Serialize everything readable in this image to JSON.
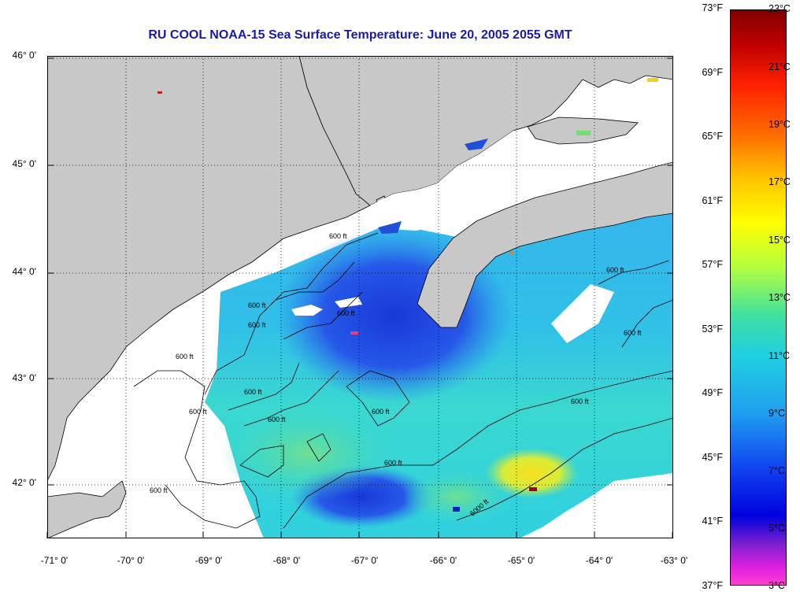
{
  "title": "RU COOL  NOAA-15  Sea Surface Temperature:  June 20, 2005 2055 GMT",
  "map": {
    "lat_ticks": [
      "46° 0'",
      "45° 0'",
      "44° 0'",
      "43° 0'",
      "42° 0'"
    ],
    "lon_ticks": [
      "-71° 0'",
      "-70° 0'",
      "-69° 0'",
      "-68° 0'",
      "-67° 0'",
      "-66° 0'",
      "-65° 0'",
      "-64° 0'",
      "-63° 0'"
    ],
    "lat_range": [
      41.5,
      46.1
    ],
    "lon_range": [
      -71.0,
      -63.0
    ],
    "contour_labels": [
      "600 ft",
      "600 ft",
      "600 ft",
      "600 ft",
      "600 ft",
      "600 ft",
      "600 ft",
      "600 ft",
      "600 ft",
      "600 ft",
      "600 ft",
      "600 ft",
      "600 ft",
      "600 ft",
      "6000 ft"
    ]
  },
  "colorbar": {
    "fahrenheit_labels": [
      "73°F",
      "69°F",
      "65°F",
      "61°F",
      "57°F",
      "53°F",
      "49°F",
      "45°F",
      "41°F",
      "37°F"
    ],
    "celsius_labels": [
      "23°C",
      "21°C",
      "19°C",
      "17°C",
      "15°C",
      "13°C",
      "11°C",
      "9°C",
      "7°C",
      "5°C",
      "3°C"
    ],
    "fahrenheit_range": [
      37,
      73
    ],
    "celsius_range": [
      3,
      23
    ]
  },
  "colors": {
    "land": "#c8c8c8",
    "title": "#1a1aa8",
    "sst_cold": "#1e50e0",
    "sst_mid": "#30c8e0",
    "sst_warm": "#f0e020"
  }
}
